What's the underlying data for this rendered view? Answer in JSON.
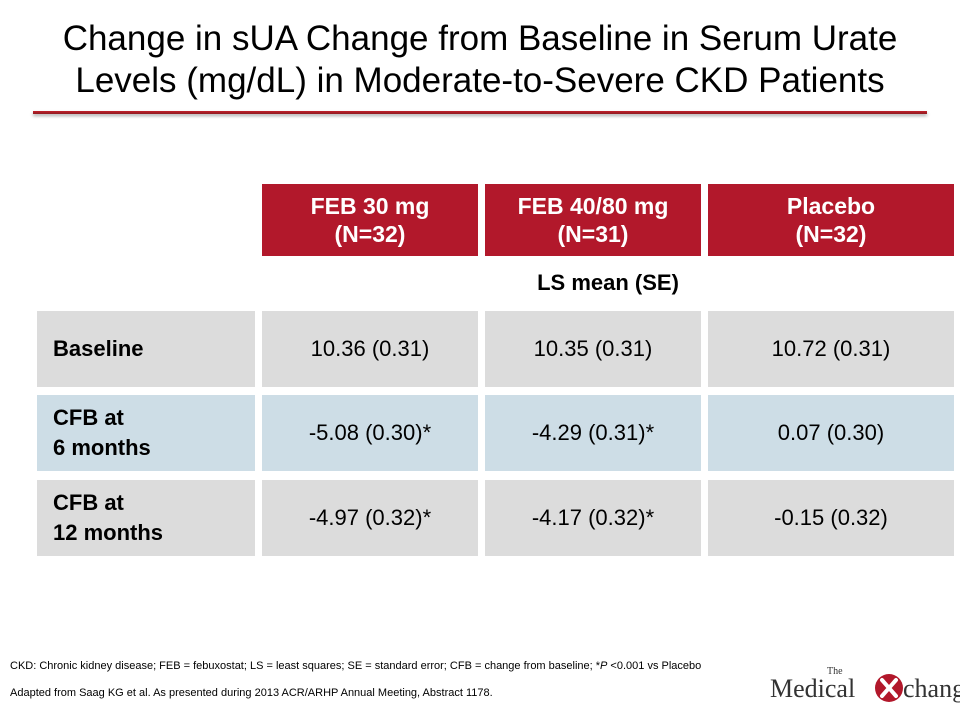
{
  "title": {
    "line1": "Change in sUA Change from Baseline in Serum Urate",
    "line2": "Levels (mg/dL) in Moderate-to-Severe CKD Patients"
  },
  "table": {
    "columns": [
      {
        "name": "FEB 30 mg",
        "n": "(N=32)"
      },
      {
        "name": "FEB 40/80 mg",
        "n": "(N=31)"
      },
      {
        "name": "Placebo",
        "n": "(N=32)"
      }
    ],
    "subheader": "LS mean (SE)",
    "rows": [
      {
        "label_line1": "Baseline",
        "label_line2": "",
        "values": [
          "10.36 (0.31)",
          "10.35 (0.31)",
          "10.72 (0.31)"
        ]
      },
      {
        "label_line1": "CFB at",
        "label_line2": "6 months",
        "values": [
          "-5.08 (0.30)*",
          "-4.29 (0.31)*",
          "0.07 (0.30)"
        ]
      },
      {
        "label_line1": "CFB at",
        "label_line2": "12 months",
        "values": [
          "-4.97 (0.32)*",
          "-4.17 (0.32)*",
          "-0.15 (0.32)"
        ]
      }
    ]
  },
  "footnotes": {
    "abbrev_pre": "CKD: Chronic kidney disease; FEB = febuxostat; LS = least squares; SE = standard error; CFB = change from baseline; *",
    "abbrev_p": "P",
    "abbrev_post": " <0.001 vs Placebo",
    "source": "Adapted from Saag KG et al. As presented during 2013 ACR/ARHP Annual Meeting, Abstract 1178."
  },
  "logo": {
    "the": "The",
    "medical": "Medical",
    "change": "change"
  },
  "colors": {
    "header_red": "#b2182b",
    "row_gray": "#dcdcdc",
    "row_blue": "#cddde6"
  }
}
